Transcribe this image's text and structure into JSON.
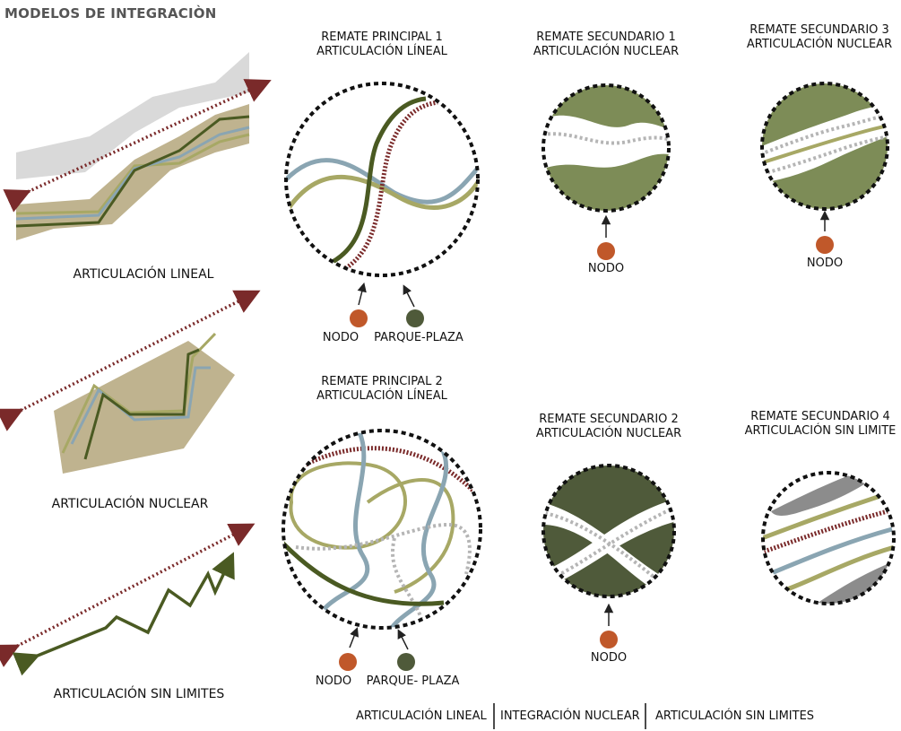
{
  "title": "MODELOS DE INTEGRACIÒN",
  "models": [
    {
      "label": "ARTICULACIÓN LINEAL"
    },
    {
      "label": "ARTICULACIÓN NUCLEAR"
    },
    {
      "label": "ARTICULACIÓN SIN LIMITES"
    }
  ],
  "diagrams": {
    "rp1": {
      "line1": "REMATE PRINCIPAL 1",
      "line2": "ARTICULACIÓN LÍNEAL",
      "node_label": "NODO",
      "park_label": "PARQUE-PLAZA"
    },
    "rp2": {
      "line1": "REMATE PRINCIPAL 2",
      "line2": "ARTICULACIÓN LÍNEAL",
      "node_label": "NODO",
      "park_label": "PARQUE- PLAZA"
    },
    "rs1": {
      "line1": "REMATE SECUNDARIO 1",
      "line2": "ARTICULACIÓN NUCLEAR",
      "node_label": "NODO"
    },
    "rs2": {
      "line1": "REMATE SECUNDARIO 2",
      "line2": "ARTICULACIÓN NUCLEAR",
      "node_label": "NODO"
    },
    "rs3": {
      "line1": "REMATE SECUNDARIO 3",
      "line2": "ARTICULACIÓN NUCLEAR",
      "node_label": "NODO"
    },
    "rs4": {
      "line1": "REMATE SECUNDARIO 4",
      "line2": "ARTICULACIÓN SIN LIMITE"
    }
  },
  "legend": {
    "item1": "ARTICULACIÓN LINEAL",
    "item2": "INTEGRACIÓN NUCLEAR",
    "item3": "ARTICULACIÓN SIN LIMITES"
  },
  "colors": {
    "node": "#c0582a",
    "park": "#4f5a3a",
    "dark_green": "#4a5a22",
    "olive": "#a7a865",
    "blue_gray": "#8aa5b2",
    "maroon": "#7a2a2a",
    "khaki": "#bfb38f",
    "light_gray": "#d9d9d9",
    "sage": "#7d8c57"
  }
}
